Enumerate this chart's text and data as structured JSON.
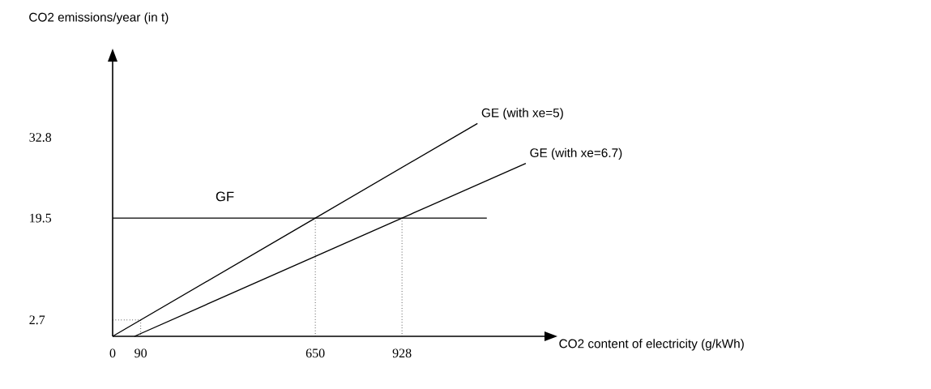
{
  "chart_data": {
    "type": "line",
    "xlabel": "CO2 content of electricity (g/kWh)",
    "ylabel": "CO2 emissions/year (in t)",
    "xlim": [
      0,
      1385
    ],
    "ylim": [
      0,
      45.3
    ],
    "xticks": [
      0,
      90,
      650,
      928
    ],
    "yticks": [
      2.7,
      19.5,
      32.8
    ],
    "grid": false,
    "marker": "none",
    "line_style": "solid",
    "series": [
      {
        "name": "GE (with xe=5)",
        "color": "#000000",
        "x": [
          0,
          650,
          1170
        ],
        "values": [
          0,
          19.5,
          35.1
        ]
      },
      {
        "name": "GE (with xe=6.7)",
        "color": "#000000",
        "x": [
          70,
          928,
          1325
        ],
        "values": [
          0,
          19.5,
          28.5
        ]
      },
      {
        "name": "GF",
        "color": "#000000",
        "x": [
          0,
          1200
        ],
        "values": [
          19.5,
          19.5
        ]
      },
      {
        "color": "#000000",
        "line_style": "dotted",
        "x": [
          0,
          90,
          90
        ],
        "values": [
          2.7,
          2.7,
          0
        ]
      },
      {
        "color": "#000000",
        "line_style": "dotted",
        "x": [
          650,
          650
        ],
        "values": [
          19.5,
          0
        ]
      },
      {
        "color": "#000000",
        "line_style": "dotted",
        "x": [
          928,
          928
        ],
        "values": [
          19.5,
          0
        ]
      }
    ]
  }
}
